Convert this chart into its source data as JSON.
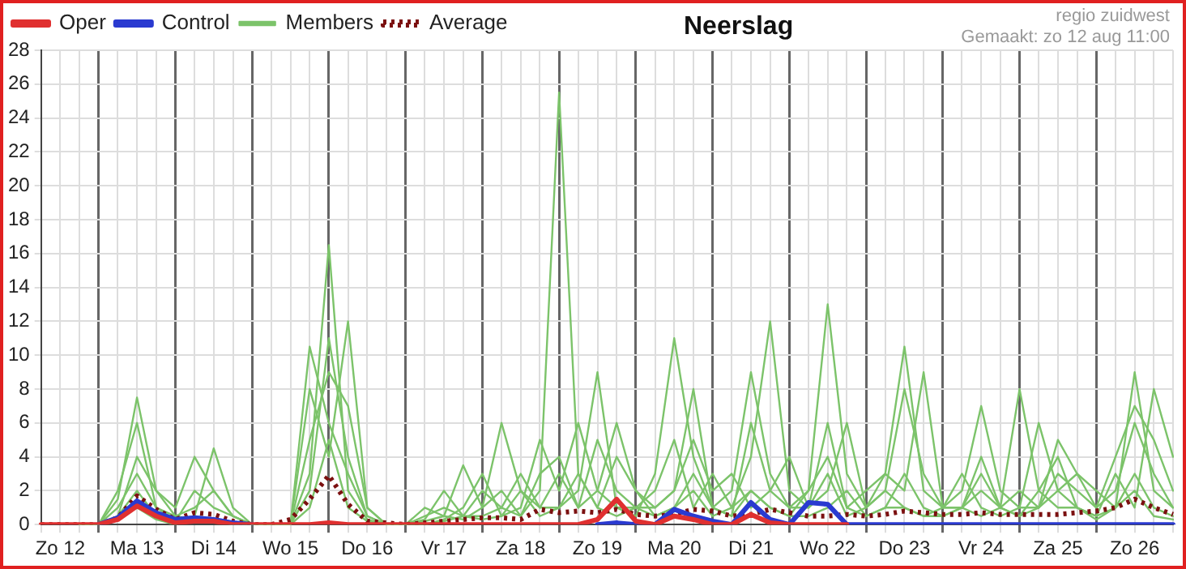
{
  "chart_data": {
    "type": "line",
    "title": "Neerslag",
    "annotations": [
      "regio zuidwest",
      "Gemaakt: zo 12 aug 11:00"
    ],
    "categories": [
      null,
      "Zo 12",
      null,
      null,
      null,
      "Ma 13",
      null,
      null,
      null,
      "Di 14",
      null,
      null,
      null,
      "Wo 15",
      null,
      null,
      null,
      "Do 16",
      null,
      null,
      null,
      "Vr 17",
      null,
      null,
      null,
      "Za 18",
      null,
      null,
      null,
      "Zo 19",
      null,
      null,
      null,
      "Ma 20",
      null,
      null,
      null,
      "Di 21",
      null,
      null,
      null,
      "Wo 22",
      null,
      null,
      null,
      "Do 23",
      null,
      null,
      null,
      "Vr 24",
      null,
      null,
      null,
      "Za 25",
      null,
      null,
      null,
      "Zo 26",
      null,
      null
    ],
    "ylim": [
      0,
      28
    ],
    "yticks": [
      0,
      2,
      4,
      6,
      8,
      10,
      12,
      14,
      16,
      18,
      20,
      22,
      24,
      26,
      28
    ],
    "grid": true,
    "legend": "top left",
    "marker": "none",
    "series": [
      {
        "name": "Oper",
        "color": "#e03030",
        "values": [
          0,
          0,
          0,
          0,
          0.3,
          1.1,
          0.5,
          0.1,
          0.2,
          0.2,
          0,
          0,
          0,
          0,
          0,
          0.1,
          0,
          0,
          0,
          0,
          0,
          0,
          0,
          0,
          0,
          0,
          0,
          0,
          0,
          0.3,
          1.5,
          0.2,
          0,
          0.5,
          0.3,
          0,
          0,
          0.6,
          0.1,
          0,
          0,
          0,
          0,
          null,
          null,
          null,
          null,
          null,
          null,
          null,
          null,
          null,
          null,
          null,
          null,
          null,
          null,
          null,
          null,
          null
        ]
      },
      {
        "name": "Control",
        "color": "#2a3ad0",
        "values": [
          null,
          null,
          null,
          0,
          0.4,
          1.4,
          0.7,
          0.3,
          0.4,
          0.3,
          0.1,
          0,
          null,
          null,
          null,
          null,
          null,
          null,
          null,
          null,
          null,
          null,
          null,
          null,
          null,
          null,
          null,
          null,
          null,
          0,
          0.1,
          0,
          0,
          0.9,
          0.5,
          0.2,
          0,
          1.3,
          0.3,
          0,
          1.3,
          1.2,
          0,
          0,
          0,
          0,
          0,
          0,
          0,
          0,
          0,
          0,
          0,
          0,
          0,
          0,
          0,
          0,
          0,
          0
        ]
      },
      {
        "name": "Members",
        "color": "#7cc36a",
        "values": [
          null,
          null,
          0,
          0,
          1.5,
          7.5,
          2,
          0.5,
          0.3,
          0.2,
          0,
          0,
          0,
          0,
          3,
          16.5,
          2,
          0.3,
          0,
          0,
          0.5,
          1,
          0.5,
          2,
          1,
          0.5,
          2,
          25.5,
          3,
          1,
          4,
          2,
          0.5,
          1,
          3,
          1,
          0.5,
          2,
          1,
          0.5,
          2,
          4,
          1,
          0.5,
          1,
          3,
          1,
          0.5,
          1,
          2,
          1,
          0.5,
          2,
          4,
          1,
          0.5,
          1,
          2,
          0.5,
          0.3
        ]
      },
      {
        "name": "Average",
        "color": "#7b1010",
        "line_style": "dotted",
        "values": [
          0,
          0,
          0,
          0,
          0.4,
          1.7,
          0.9,
          0.3,
          0.7,
          0.6,
          0.2,
          0,
          0,
          0.3,
          1.5,
          2.9,
          1.2,
          0.2,
          0.1,
          0,
          0.1,
          0.2,
          0.3,
          0.4,
          0.4,
          0.3,
          0.9,
          0.7,
          0.8,
          0.7,
          0.9,
          0.6,
          0.5,
          0.6,
          0.9,
          0.8,
          0.5,
          0.6,
          0.9,
          0.7,
          0.5,
          0.5,
          0.6,
          0.5,
          0.6,
          0.8,
          0.7,
          0.6,
          0.6,
          0.7,
          0.6,
          0.6,
          0.6,
          0.6,
          0.7,
          0.8,
          1,
          1.5,
          1,
          0.6
        ]
      },
      {
        "color": "#7cc36a",
        "values": [
          null,
          null,
          0,
          0,
          2,
          6,
          1,
          0.5,
          1,
          2,
          0.5,
          0,
          0,
          0,
          8,
          4,
          12,
          1,
          0,
          0,
          0,
          0.3,
          1,
          3,
          0.5,
          1,
          5,
          2,
          6,
          2,
          1,
          0.5,
          3,
          11,
          4,
          1,
          0.5,
          6,
          2,
          1,
          1,
          3,
          0.5,
          1,
          2,
          1,
          0.5,
          1,
          3,
          1,
          0.5,
          1,
          1,
          5,
          3,
          2,
          1,
          9,
          2,
          1
        ]
      },
      {
        "color": "#7cc36a",
        "values": [
          null,
          null,
          0,
          0,
          0.5,
          4,
          2,
          1,
          4,
          2,
          0.5,
          0,
          0,
          0,
          10.5,
          6,
          3,
          0.5,
          0,
          0,
          1,
          0.5,
          0.3,
          1,
          6,
          2,
          1,
          3,
          1,
          5,
          2,
          1,
          1,
          2,
          8,
          1,
          2,
          9,
          3,
          1,
          2,
          13,
          3,
          1,
          2,
          8,
          3,
          1,
          2,
          7,
          2,
          1,
          6,
          2,
          3,
          1,
          2,
          6,
          3,
          1
        ]
      },
      {
        "color": "#7cc36a",
        "values": [
          null,
          null,
          0,
          0,
          1,
          3,
          1,
          0.3,
          0.5,
          4.5,
          1,
          0,
          0,
          0,
          5,
          9,
          7,
          1,
          0,
          0,
          0.3,
          2,
          0.5,
          0.5,
          1,
          3,
          1,
          1,
          2,
          9,
          1,
          1,
          2,
          5,
          1,
          3,
          1,
          4,
          12,
          2,
          1,
          6,
          1,
          2,
          3,
          10.5,
          2,
          1,
          1,
          3,
          1,
          2,
          1,
          3,
          2,
          1,
          4,
          7,
          5,
          2
        ]
      },
      {
        "color": "#7cc36a",
        "values": [
          null,
          null,
          0,
          0,
          0.5,
          2,
          0.5,
          0.2,
          2,
          1,
          0.5,
          0,
          0,
          0,
          2,
          11,
          4,
          0.5,
          0,
          0,
          0.2,
          0.5,
          3.5,
          1,
          2,
          0.5,
          3,
          4,
          1,
          2,
          6,
          2,
          1,
          2,
          5,
          2,
          3,
          1,
          2,
          4,
          1,
          2,
          6,
          1,
          3,
          2,
          9,
          1,
          1,
          4,
          1,
          8,
          2,
          1,
          1,
          0.5,
          3,
          1,
          8,
          4
        ]
      },
      {
        "color": "#7cc36a",
        "values": [
          null,
          null,
          0,
          0,
          0.3,
          1,
          0.3,
          0,
          0.5,
          0.3,
          0,
          0,
          0,
          0,
          1,
          5,
          1,
          0.2,
          0,
          0,
          0,
          0.2,
          0.5,
          0.3,
          0.5,
          2,
          0.5,
          1,
          3,
          1,
          0.5,
          1,
          0.5,
          1,
          2,
          0.5,
          1,
          2,
          1,
          0.5,
          0.5,
          1,
          2,
          0.5,
          1,
          1,
          0.5,
          0.5,
          1,
          0.5,
          1,
          0.5,
          1,
          2,
          1,
          0.3,
          1,
          3,
          1,
          0.5
        ]
      }
    ]
  }
}
